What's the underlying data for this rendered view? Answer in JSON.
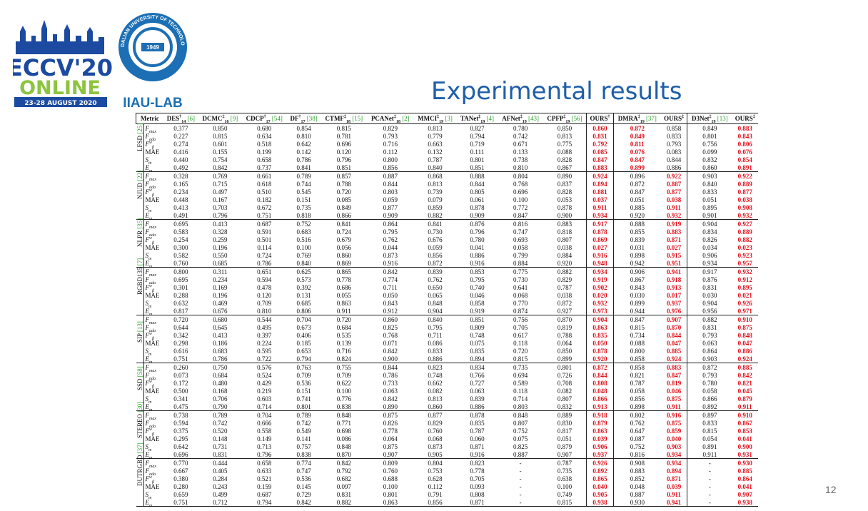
{
  "header": {
    "event": "ECCV'20",
    "online": "ONLINE",
    "dates": "23-28 AUGUST 2020",
    "university": "DALIAN UNIVERSITY OF TECHNOLOGY",
    "founded": "1949",
    "lab": "IIAU-LAB"
  },
  "title": "Experimental results",
  "page_number": "12",
  "table": {
    "metric_header": "Metric",
    "columns": [
      {
        "name": "DES",
        "sup": "†",
        "sub": "14",
        "ref": "[6]"
      },
      {
        "name": "DCMC",
        "sup": "‡",
        "sub": "16",
        "ref": "[9]"
      },
      {
        "name": "CDCP",
        "sup": "†",
        "sub": "17",
        "ref": "[54]"
      },
      {
        "name": "DF",
        "sup": "†",
        "sub": "17",
        "ref": "[38]"
      },
      {
        "name": "CTMF",
        "sup": "‡",
        "sub": "18",
        "ref": "[15]"
      },
      {
        "name": "PCANet",
        "sup": "‡",
        "sub": "18",
        "ref": "[2]"
      },
      {
        "name": "MMCI",
        "sup": "‡",
        "sub": "19",
        "ref": "[3]"
      },
      {
        "name": "TANet",
        "sup": "‡",
        "sub": "19",
        "ref": "[4]"
      },
      {
        "name": "AFNet",
        "sup": "‡",
        "sub": "19",
        "ref": "[43]"
      },
      {
        "name": "CPFP",
        "sup": "‡",
        "sub": "19",
        "ref": "[56]"
      },
      {
        "name": "OURS",
        "sup": "†"
      },
      {
        "name": "DMRA",
        "sup": "‡",
        "sub": "19",
        "ref": "[37]"
      },
      {
        "name": "OURS",
        "sup": "‡"
      },
      {
        "name": "D3Net",
        "sup": "‡",
        "sub": "19",
        "ref": "[13]"
      },
      {
        "name": "OURS",
        "sup": "‡"
      }
    ],
    "metrics": [
      {
        "symbol": "F",
        "sub": "max"
      },
      {
        "symbol": "F",
        "sub": "ada"
      },
      {
        "symbol": "F",
        "sup": "w",
        "sub": "β"
      },
      {
        "symbol": "MAE"
      },
      {
        "symbol": "S",
        "sub": "m"
      },
      {
        "symbol": "E",
        "sub": "m"
      }
    ],
    "groups": [
      {
        "name": "LFSD",
        "ref": "[25]",
        "highlight_columns": [
          10,
          11,
          14
        ],
        "rows": [
          [
            "0.377",
            "0.850",
            "0.680",
            "0.854",
            "0.815",
            "0.829",
            "0.813",
            "0.827",
            "0.780",
            "0.850",
            "0.860",
            "0.872",
            "0.858",
            "0.849",
            "0.883"
          ],
          [
            "0.227",
            "0.815",
            "0.634",
            "0.810",
            "0.781",
            "0.793",
            "0.779",
            "0.794",
            "0.742",
            "0.813",
            "0.831",
            "0.849",
            "0.833",
            "0.801",
            "0.843"
          ],
          [
            "0.274",
            "0.601",
            "0.518",
            "0.642",
            "0.696",
            "0.716",
            "0.663",
            "0.719",
            "0.671",
            "0.775",
            "0.792",
            "0.811",
            "0.793",
            "0.756",
            "0.806"
          ],
          [
            "0.416",
            "0.155",
            "0.199",
            "0.142",
            "0.120",
            "0.112",
            "0.132",
            "0.111",
            "0.133",
            "0.088",
            "0.085",
            "0.076",
            "0.083",
            "0.099",
            "0.076"
          ],
          [
            "0.440",
            "0.754",
            "0.658",
            "0.786",
            "0.796",
            "0.800",
            "0.787",
            "0.801",
            "0.738",
            "0.828",
            "0.847",
            "0.847",
            "0.844",
            "0.832",
            "0.854"
          ],
          [
            "0.492",
            "0.842",
            "0.737",
            "0.841",
            "0.851",
            "0.856",
            "0.840",
            "0.851",
            "0.810",
            "0.867",
            "0.883",
            "0.899",
            "0.886",
            "0.860",
            "0.891"
          ]
        ]
      },
      {
        "name": "NJUD",
        "ref": "[22]",
        "highlight_columns": [
          10,
          12,
          14
        ],
        "rows": [
          [
            "0.328",
            "0.769",
            "0.661",
            "0.789",
            "0.857",
            "0.887",
            "0.868",
            "0.888",
            "0.804",
            "0.890",
            "0.924",
            "0.896",
            "0.922",
            "0.903",
            "0.922"
          ],
          [
            "0.165",
            "0.715",
            "0.618",
            "0.744",
            "0.788",
            "0.844",
            "0.813",
            "0.844",
            "0.768",
            "0.837",
            "0.894",
            "0.872",
            "0.887",
            "0.840",
            "0.889"
          ],
          [
            "0.234",
            "0.497",
            "0.510",
            "0.545",
            "0.720",
            "0.803",
            "0.739",
            "0.805",
            "0.696",
            "0.828",
            "0.881",
            "0.847",
            "0.877",
            "0.833",
            "0.877"
          ],
          [
            "0.448",
            "0.167",
            "0.182",
            "0.151",
            "0.085",
            "0.059",
            "0.079",
            "0.061",
            "0.100",
            "0.053",
            "0.037",
            "0.051",
            "0.038",
            "0.051",
            "0.038"
          ],
          [
            "0.413",
            "0.703",
            "0.672",
            "0.735",
            "0.849",
            "0.877",
            "0.859",
            "0.878",
            "0.772",
            "0.878",
            "0.911",
            "0.885",
            "0.911",
            "0.895",
            "0.908"
          ],
          [
            "0.491",
            "0.796",
            "0.751",
            "0.818",
            "0.866",
            "0.909",
            "0.882",
            "0.909",
            "0.847",
            "0.900",
            "0.934",
            "0.920",
            "0.932",
            "0.901",
            "0.932"
          ]
        ]
      },
      {
        "name": "NLPR",
        "ref": "[35]",
        "highlight_columns": [
          10,
          12,
          14
        ],
        "rows": [
          [
            "0.695",
            "0.413",
            "0.687",
            "0.752",
            "0.841",
            "0.864",
            "0.841",
            "0.876",
            "0.816",
            "0.883",
            "0.917",
            "0.888",
            "0.919",
            "0.904",
            "0.927"
          ],
          [
            "0.583",
            "0.328",
            "0.591",
            "0.683",
            "0.724",
            "0.795",
            "0.730",
            "0.796",
            "0.747",
            "0.818",
            "0.878",
            "0.855",
            "0.883",
            "0.834",
            "0.889"
          ],
          [
            "0.254",
            "0.259",
            "0.501",
            "0.516",
            "0.679",
            "0.762",
            "0.676",
            "0.780",
            "0.693",
            "0.807",
            "0.869",
            "0.839",
            "0.871",
            "0.826",
            "0.882"
          ],
          [
            "0.300",
            "0.196",
            "0.114",
            "0.100",
            "0.056",
            "0.044",
            "0.059",
            "0.041",
            "0.058",
            "0.038",
            "0.027",
            "0.031",
            "0.027",
            "0.034",
            "0.023"
          ],
          [
            "0.582",
            "0.550",
            "0.724",
            "0.769",
            "0.860",
            "0.873",
            "0.856",
            "0.886",
            "0.799",
            "0.884",
            "0.916",
            "0.898",
            "0.915",
            "0.906",
            "0.923"
          ],
          [
            "0.760",
            "0.685",
            "0.786",
            "0.840",
            "0.869",
            "0.916",
            "0.872",
            "0.916",
            "0.884",
            "0.920",
            "0.948",
            "0.942",
            "0.951",
            "0.934",
            "0.957"
          ]
        ]
      },
      {
        "name": "RGBD135",
        "ref": "[7]",
        "highlight_columns": [
          10,
          12,
          14
        ],
        "rows": [
          [
            "0.800",
            "0.311",
            "0.651",
            "0.625",
            "0.865",
            "0.842",
            "0.839",
            "0.853",
            "0.775",
            "0.882",
            "0.934",
            "0.906",
            "0.941",
            "0.917",
            "0.932"
          ],
          [
            "0.695",
            "0.234",
            "0.594",
            "0.573",
            "0.778",
            "0.774",
            "0.762",
            "0.795",
            "0.730",
            "0.829",
            "0.919",
            "0.867",
            "0.918",
            "0.876",
            "0.912"
          ],
          [
            "0.301",
            "0.169",
            "0.478",
            "0.392",
            "0.686",
            "0.711",
            "0.650",
            "0.740",
            "0.641",
            "0.787",
            "0.902",
            "0.843",
            "0.913",
            "0.831",
            "0.895"
          ],
          [
            "0.288",
            "0.196",
            "0.120",
            "0.131",
            "0.055",
            "0.050",
            "0.065",
            "0.046",
            "0.068",
            "0.038",
            "0.020",
            "0.030",
            "0.017",
            "0.030",
            "0.021"
          ],
          [
            "0.632",
            "0.469",
            "0.709",
            "0.685",
            "0.863",
            "0.843",
            "0.848",
            "0.858",
            "0.770",
            "0.872",
            "0.932",
            "0.899",
            "0.937",
            "0.904",
            "0.926"
          ],
          [
            "0.817",
            "0.676",
            "0.810",
            "0.806",
            "0.911",
            "0.912",
            "0.904",
            "0.919",
            "0.874",
            "0.927",
            "0.973",
            "0.944",
            "0.976",
            "0.956",
            "0.971"
          ]
        ]
      },
      {
        "name": "SIP",
        "ref": "[13]",
        "highlight_columns": [
          10,
          12,
          14
        ],
        "rows": [
          [
            "0.720",
            "0.680",
            "0.544",
            "0.704",
            "0.720",
            "0.860",
            "0.840",
            "0.851",
            "0.756",
            "0.870",
            "0.904",
            "0.847",
            "0.907",
            "0.882",
            "0.910"
          ],
          [
            "0.644",
            "0.645",
            "0.495",
            "0.673",
            "0.684",
            "0.825",
            "0.795",
            "0.809",
            "0.705",
            "0.819",
            "0.863",
            "0.815",
            "0.870",
            "0.831",
            "0.875"
          ],
          [
            "0.342",
            "0.413",
            "0.397",
            "0.406",
            "0.535",
            "0.768",
            "0.711",
            "0.748",
            "0.617",
            "0.788",
            "0.835",
            "0.734",
            "0.844",
            "0.793",
            "0.848"
          ],
          [
            "0.298",
            "0.186",
            "0.224",
            "0.185",
            "0.139",
            "0.071",
            "0.086",
            "0.075",
            "0.118",
            "0.064",
            "0.050",
            "0.088",
            "0.047",
            "0.063",
            "0.047"
          ],
          [
            "0.616",
            "0.683",
            "0.595",
            "0.653",
            "0.716",
            "0.842",
            "0.833",
            "0.835",
            "0.720",
            "0.850",
            "0.878",
            "0.800",
            "0.885",
            "0.864",
            "0.886"
          ],
          [
            "0.751",
            "0.786",
            "0.722",
            "0.794",
            "0.824",
            "0.900",
            "0.886",
            "0.894",
            "0.815",
            "0.899",
            "0.920",
            "0.858",
            "0.924",
            "0.903",
            "0.924"
          ]
        ]
      },
      {
        "name": "SSD",
        "ref": "[58]",
        "highlight_columns": [
          10,
          12,
          14
        ],
        "rows": [
          [
            "0.260",
            "0.750",
            "0.576",
            "0.763",
            "0.755",
            "0.844",
            "0.823",
            "0.834",
            "0.735",
            "0.801",
            "0.872",
            "0.858",
            "0.883",
            "0.872",
            "0.885"
          ],
          [
            "0.073",
            "0.684",
            "0.524",
            "0.709",
            "0.709",
            "0.786",
            "0.748",
            "0.766",
            "0.694",
            "0.726",
            "0.844",
            "0.821",
            "0.847",
            "0.793",
            "0.842"
          ],
          [
            "0.172",
            "0.480",
            "0.429",
            "0.536",
            "0.622",
            "0.733",
            "0.662",
            "0.727",
            "0.589",
            "0.708",
            "0.808",
            "0.787",
            "0.819",
            "0.780",
            "0.821"
          ],
          [
            "0.500",
            "0.168",
            "0.219",
            "0.151",
            "0.100",
            "0.063",
            "0.082",
            "0.063",
            "0.118",
            "0.082",
            "0.048",
            "0.058",
            "0.046",
            "0.058",
            "0.045"
          ],
          [
            "0.341",
            "0.706",
            "0.603",
            "0.741",
            "0.776",
            "0.842",
            "0.813",
            "0.839",
            "0.714",
            "0.807",
            "0.866",
            "0.856",
            "0.875",
            "0.866",
            "0.879"
          ],
          [
            "0.475",
            "0.790",
            "0.714",
            "0.801",
            "0.838",
            "0.890",
            "0.860",
            "0.886",
            "0.803",
            "0.832",
            "0.913",
            "0.898",
            "0.911",
            "0.892",
            "0.911"
          ]
        ]
      },
      {
        "name": "STEREO",
        "ref": "[30]",
        "highlight_columns": [
          10,
          12,
          14
        ],
        "rows": [
          [
            "0.738",
            "0.789",
            "0.704",
            "0.789",
            "0.848",
            "0.875",
            "0.877",
            "0.878",
            "0.848",
            "0.889",
            "0.918",
            "0.802",
            "0.916",
            "0.897",
            "0.910"
          ],
          [
            "0.594",
            "0.742",
            "0.666",
            "0.742",
            "0.771",
            "0.826",
            "0.829",
            "0.835",
            "0.807",
            "0.830",
            "0.879",
            "0.762",
            "0.875",
            "0.833",
            "0.867"
          ],
          [
            "0.375",
            "0.520",
            "0.558",
            "0.549",
            "0.698",
            "0.778",
            "0.760",
            "0.787",
            "0.752",
            "0.817",
            "0.863",
            "0.647",
            "0.859",
            "0.815",
            "0.853"
          ],
          [
            "0.295",
            "0.148",
            "0.149",
            "0.141",
            "0.086",
            "0.064",
            "0.068",
            "0.060",
            "0.075",
            "0.051",
            "0.039",
            "0.087",
            "0.040",
            "0.054",
            "0.041"
          ],
          [
            "0.642",
            "0.731",
            "0.713",
            "0.757",
            "0.848",
            "0.875",
            "0.873",
            "0.871",
            "0.825",
            "0.879",
            "0.906",
            "0.752",
            "0.903",
            "0.891",
            "0.900"
          ],
          [
            "0.696",
            "0.831",
            "0.796",
            "0.838",
            "0.870",
            "0.907",
            "0.905",
            "0.916",
            "0.887",
            "0.907",
            "0.937",
            "0.816",
            "0.934",
            "0.911",
            "0.931"
          ]
        ]
      },
      {
        "name": "DUTRGBD",
        "ref": "[37]",
        "highlight_columns": [
          10,
          12,
          14
        ],
        "rows": [
          [
            "0.770",
            "0.444",
            "0.658",
            "0.774",
            "0.842",
            "0.809",
            "0.804",
            "0.823",
            "-",
            "0.787",
            "0.926",
            "0.908",
            "0.934",
            "-",
            "0.930"
          ],
          [
            "0.667",
            "0.405",
            "0.633",
            "0.747",
            "0.792",
            "0.760",
            "0.753",
            "0.778",
            "-",
            "0.735",
            "0.892",
            "0.883",
            "0.894",
            "-",
            "0.885"
          ],
          [
            "0.380",
            "0.284",
            "0.521",
            "0.536",
            "0.682",
            "0.688",
            "0.628",
            "0.705",
            "-",
            "0.638",
            "0.865",
            "0.852",
            "0.871",
            "-",
            "0.864"
          ],
          [
            "0.280",
            "0.243",
            "0.159",
            "0.145",
            "0.097",
            "0.100",
            "0.112",
            "0.093",
            "-",
            "0.100",
            "0.040",
            "0.048",
            "0.039",
            "-",
            "0.041"
          ],
          [
            "0.659",
            "0.499",
            "0.687",
            "0.729",
            "0.831",
            "0.801",
            "0.791",
            "0.808",
            "-",
            "0.749",
            "0.905",
            "0.887",
            "0.911",
            "-",
            "0.907"
          ],
          [
            "0.751",
            "0.712",
            "0.794",
            "0.842",
            "0.882",
            "0.863",
            "0.856",
            "0.871",
            "-",
            "0.815",
            "0.938",
            "0.930",
            "0.941",
            "-",
            "0.938"
          ]
        ]
      }
    ]
  }
}
